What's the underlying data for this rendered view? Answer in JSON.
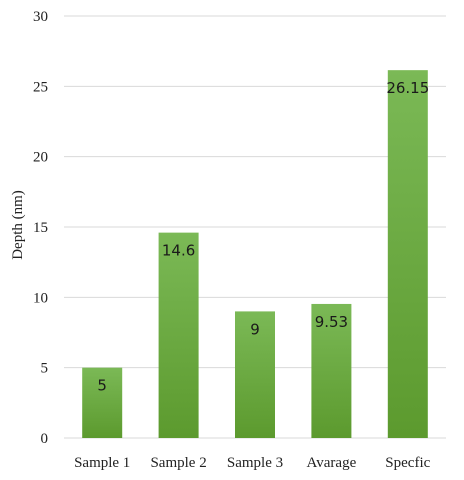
{
  "chart_data": {
    "type": "bar",
    "categories": [
      "Sample 1",
      "Sample 2",
      "Sample 3",
      "Avarage",
      "Specfic"
    ],
    "values": [
      5,
      14.6,
      9,
      9.53,
      26.15
    ],
    "data_labels": [
      "5",
      "14.6",
      "9",
      "9.53",
      "26.15"
    ],
    "title": "",
    "xlabel": "",
    "ylabel": "Depth (nm)",
    "ylim": [
      0,
      30
    ],
    "yticks": [
      "0",
      "5",
      "10",
      "15",
      "20",
      "25",
      "30"
    ],
    "grid": true,
    "legend": "none",
    "colors": {
      "bar_top": "#7bb956",
      "bar_bottom": "#5c9a2e",
      "grid": "#d9d9d9",
      "text": "#222222"
    }
  }
}
